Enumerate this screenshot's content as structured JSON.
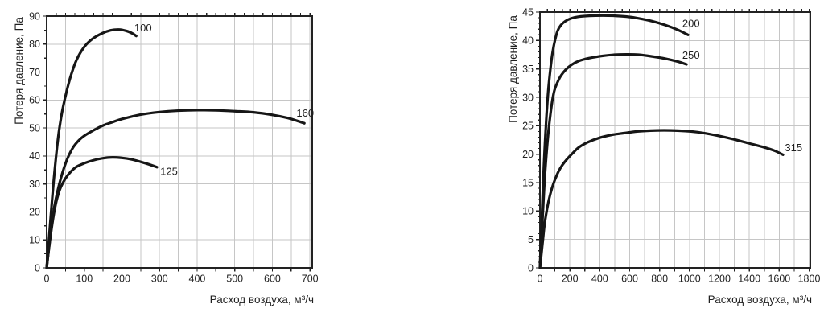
{
  "page": {
    "background": "#ffffff"
  },
  "colors": {
    "curve": "#161616",
    "grid": "#c6c6c6",
    "frame": "#222222",
    "text": "#1f1f1f"
  },
  "chart_data": [
    {
      "type": "line",
      "title": "",
      "xlabel": "Расход воздуха, м³/ч",
      "ylabel": "Потеря давление, Па",
      "xlim": [
        0,
        706
      ],
      "ylim": [
        0,
        90
      ],
      "x_axis_max": 700,
      "y_axis_max": 90,
      "x_label_step": 100,
      "x_grid_step": 50,
      "x_tick_step_bottom": 50,
      "x_tick_step_top": 25,
      "y_label_step": 10,
      "y_grid_step": 10,
      "y_tick_step_minor": 5,
      "grid": true,
      "legend": "inline-curve-labels",
      "series": [
        {
          "name": "100",
          "label": "100",
          "label_x": 233,
          "label_y": 84.5,
          "points": [
            [
              0,
              0
            ],
            [
              6,
              10
            ],
            [
              13,
              22
            ],
            [
              20,
              33
            ],
            [
              30,
              46
            ],
            [
              40,
              55
            ],
            [
              52,
              62.5
            ],
            [
              65,
              69
            ],
            [
              80,
              74.5
            ],
            [
              100,
              79
            ],
            [
              120,
              81.7
            ],
            [
              145,
              83.7
            ],
            [
              170,
              84.9
            ],
            [
              192,
              85.2
            ],
            [
              212,
              84.7
            ],
            [
              228,
              83.8
            ],
            [
              238,
              82.9
            ]
          ]
        },
        {
          "name": "160",
          "label": "160",
          "label_x": 664,
          "label_y": 54,
          "points": [
            [
              0,
              0
            ],
            [
              6,
              7
            ],
            [
              13,
              15
            ],
            [
              20,
              21.5
            ],
            [
              30,
              28
            ],
            [
              42,
              34
            ],
            [
              55,
              39
            ],
            [
              70,
              43
            ],
            [
              85,
              45.5
            ],
            [
              100,
              47.2
            ],
            [
              125,
              49.2
            ],
            [
              150,
              50.9
            ],
            [
              175,
              52.1
            ],
            [
              200,
              53.2
            ],
            [
              250,
              54.8
            ],
            [
              300,
              55.7
            ],
            [
              350,
              56.2
            ],
            [
              400,
              56.4
            ],
            [
              450,
              56.3
            ],
            [
              500,
              56
            ],
            [
              550,
              55.6
            ],
            [
              600,
              54.7
            ],
            [
              640,
              53.6
            ],
            [
              665,
              52.6
            ],
            [
              685,
              51.7
            ]
          ]
        },
        {
          "name": "125",
          "label": "125",
          "label_x": 302,
          "label_y": 33.2,
          "points": [
            [
              0,
              0
            ],
            [
              6,
              7
            ],
            [
              13,
              14
            ],
            [
              20,
              20
            ],
            [
              28,
              25
            ],
            [
              38,
              29
            ],
            [
              50,
              32
            ],
            [
              65,
              34.5
            ],
            [
              80,
              36.2
            ],
            [
              100,
              37.4
            ],
            [
              125,
              38.5
            ],
            [
              150,
              39.2
            ],
            [
              175,
              39.5
            ],
            [
              200,
              39.3
            ],
            [
              225,
              38.8
            ],
            [
              250,
              37.9
            ],
            [
              272,
              37
            ],
            [
              293,
              36
            ]
          ]
        }
      ]
    },
    {
      "type": "line",
      "title": "",
      "xlabel": "Расход воздуха, м³/ч",
      "ylabel": "Потеря давление, Па",
      "xlim": [
        0,
        1808
      ],
      "ylim": [
        0,
        45
      ],
      "x_axis_max": 1800,
      "y_axis_max": 45,
      "x_label_step": 200,
      "x_grid_step": 100,
      "x_tick_step_bottom": 100,
      "x_tick_step_top": 50,
      "y_label_step": 5,
      "y_grid_step": 5,
      "y_tick_step_minor": 1,
      "grid": true,
      "legend": "inline-curve-labels",
      "series": [
        {
          "name": "200",
          "label": "200",
          "label_x": 952,
          "label_y": 42.4,
          "points": [
            [
              0,
              0
            ],
            [
              10,
              7
            ],
            [
              20,
              14
            ],
            [
              30,
              20
            ],
            [
              42,
              26
            ],
            [
              55,
              31
            ],
            [
              70,
              35
            ],
            [
              85,
              38
            ],
            [
              100,
              40
            ],
            [
              118,
              41.7
            ],
            [
              140,
              42.7
            ],
            [
              170,
              43.4
            ],
            [
              210,
              43.9
            ],
            [
              260,
              44.2
            ],
            [
              330,
              44.35
            ],
            [
              420,
              44.4
            ],
            [
              500,
              44.35
            ],
            [
              580,
              44.2
            ],
            [
              660,
              43.9
            ],
            [
              750,
              43.4
            ],
            [
              840,
              42.7
            ],
            [
              920,
              41.9
            ],
            [
              990,
              41
            ]
          ]
        },
        {
          "name": "250",
          "label": "250",
          "label_x": 952,
          "label_y": 36.8,
          "points": [
            [
              0,
              0
            ],
            [
              10,
              5
            ],
            [
              20,
              10
            ],
            [
              30,
              15
            ],
            [
              42,
              19.5
            ],
            [
              55,
              23.5
            ],
            [
              70,
              27
            ],
            [
              85,
              29.8
            ],
            [
              100,
              31.5
            ],
            [
              120,
              32.8
            ],
            [
              140,
              33.8
            ],
            [
              170,
              34.8
            ],
            [
              210,
              35.7
            ],
            [
              260,
              36.4
            ],
            [
              330,
              36.9
            ],
            [
              420,
              37.3
            ],
            [
              500,
              37.5
            ],
            [
              580,
              37.55
            ],
            [
              660,
              37.5
            ],
            [
              750,
              37.2
            ],
            [
              840,
              36.8
            ],
            [
              920,
              36.3
            ],
            [
              980,
              35.8
            ]
          ]
        },
        {
          "name": "315",
          "label": "315",
          "label_x": 1638,
          "label_y": 20.5,
          "points": [
            [
              0,
              0
            ],
            [
              10,
              2.5
            ],
            [
              20,
              5
            ],
            [
              30,
              7.5
            ],
            [
              45,
              10
            ],
            [
              60,
              12
            ],
            [
              80,
              14
            ],
            [
              100,
              15.5
            ],
            [
              125,
              17
            ],
            [
              150,
              18.1
            ],
            [
              180,
              19.1
            ],
            [
              220,
              20.2
            ],
            [
              260,
              21.2
            ],
            [
              320,
              22.1
            ],
            [
              400,
              22.9
            ],
            [
              480,
              23.4
            ],
            [
              560,
              23.7
            ],
            [
              650,
              24
            ],
            [
              740,
              24.15
            ],
            [
              830,
              24.2
            ],
            [
              920,
              24.15
            ],
            [
              1010,
              24
            ],
            [
              1100,
              23.7
            ],
            [
              1200,
              23.2
            ],
            [
              1300,
              22.6
            ],
            [
              1400,
              21.9
            ],
            [
              1500,
              21.2
            ],
            [
              1570,
              20.6
            ],
            [
              1625,
              19.9
            ]
          ]
        }
      ]
    }
  ]
}
